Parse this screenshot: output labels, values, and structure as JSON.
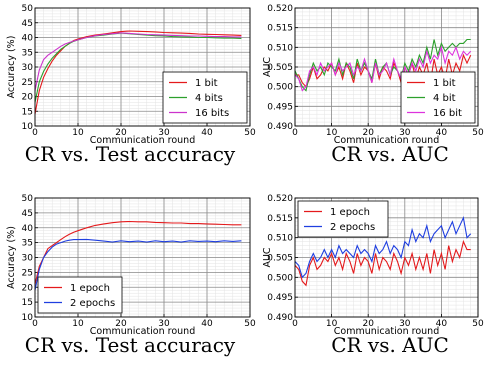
{
  "chart_data": [
    {
      "type": "line",
      "caption": "CR vs. Test accuracy",
      "xlabel": "Communication round",
      "ylabel": "Accuracy (%)",
      "xlim": [
        0,
        50
      ],
      "ylim": [
        10,
        50
      ],
      "xticks": [
        "0",
        "10",
        "20",
        "30",
        "40",
        "50"
      ],
      "yticks": [
        "10",
        "15",
        "20",
        "25",
        "30",
        "35",
        "40",
        "45",
        "50"
      ],
      "grid": true,
      "legend_position": "lower-right",
      "series": [
        {
          "name": "1 bit",
          "color": "#e41a1c",
          "x": [
            0,
            1,
            2,
            3,
            4,
            5,
            6,
            7,
            8,
            9,
            10,
            12,
            14,
            16,
            18,
            20,
            22,
            24,
            26,
            28,
            30,
            32,
            34,
            36,
            38,
            40,
            42,
            44,
            46,
            48
          ],
          "values": [
            14,
            22,
            26.5,
            29.5,
            32,
            34,
            35.5,
            37,
            38,
            39,
            39.5,
            40.3,
            40.8,
            41.2,
            41.6,
            42,
            42.2,
            42.1,
            42,
            41.9,
            41.7,
            41.6,
            41.5,
            41.4,
            41.2,
            41.1,
            41,
            40.9,
            40.8,
            40.7
          ]
        },
        {
          "name": "4 bits",
          "color": "#2ca02c",
          "x": [
            0,
            1,
            2,
            3,
            4,
            5,
            6,
            7,
            8,
            9,
            10,
            12,
            14,
            16,
            18,
            20,
            22,
            24,
            26,
            28,
            30,
            32,
            34,
            36,
            38,
            40,
            42,
            44,
            46,
            48
          ],
          "values": [
            18,
            25,
            28.5,
            31,
            33,
            34.5,
            36,
            37,
            38,
            38.7,
            39.2,
            40,
            40.5,
            40.8,
            41.2,
            41.5,
            41.3,
            41,
            40.8,
            40.6,
            40.5,
            40.3,
            40.2,
            40.1,
            40,
            40,
            39.9,
            39.8,
            39.8,
            39.7
          ]
        },
        {
          "name": "16 bits",
          "color": "#cc33cc",
          "x": [
            0,
            1,
            2,
            3,
            4,
            5,
            6,
            7,
            8,
            9,
            10,
            12,
            14,
            16,
            18,
            20,
            22,
            24,
            26,
            28,
            30,
            32,
            34,
            36,
            38,
            40,
            42,
            44,
            46,
            48
          ],
          "values": [
            22,
            29,
            32.5,
            34,
            35,
            36,
            37,
            37.8,
            38.3,
            38.8,
            39.2,
            40,
            40.6,
            41,
            41.3,
            41.6,
            41.4,
            41.2,
            41,
            40.9,
            40.8,
            40.7,
            40.6,
            40.5,
            40.5,
            40.4,
            40.3,
            40.3,
            40.2,
            40.2
          ]
        }
      ]
    },
    {
      "type": "line",
      "caption": "CR vs. AUC",
      "xlabel": "Communication round",
      "ylabel": "AUC",
      "xlim": [
        0,
        50
      ],
      "ylim": [
        0.49,
        0.52
      ],
      "xticks": [
        "0",
        "10",
        "20",
        "30",
        "40",
        "50"
      ],
      "yticks": [
        "0.490",
        "0.495",
        "0.500",
        "0.505",
        "0.510",
        "0.515",
        "0.520"
      ],
      "grid": true,
      "legend_position": "lower-right",
      "series": [
        {
          "name": "1 bit",
          "color": "#e41a1c",
          "x": [
            0,
            1,
            2,
            3,
            4,
            5,
            6,
            7,
            8,
            9,
            10,
            11,
            12,
            13,
            14,
            15,
            16,
            17,
            18,
            19,
            20,
            21,
            22,
            23,
            24,
            25,
            26,
            27,
            28,
            29,
            30,
            31,
            32,
            33,
            34,
            35,
            36,
            37,
            38,
            39,
            40,
            41,
            42,
            43,
            44,
            45,
            46,
            47,
            48
          ],
          "values": [
            0.503,
            0.503,
            0.501,
            0.5,
            0.502,
            0.505,
            0.502,
            0.503,
            0.505,
            0.504,
            0.506,
            0.503,
            0.505,
            0.502,
            0.506,
            0.504,
            0.501,
            0.506,
            0.503,
            0.505,
            0.504,
            0.501,
            0.506,
            0.502,
            0.505,
            0.504,
            0.502,
            0.506,
            0.504,
            0.501,
            0.505,
            0.503,
            0.506,
            0.502,
            0.505,
            0.503,
            0.506,
            0.501,
            0.507,
            0.503,
            0.505,
            0.502,
            0.507,
            0.503,
            0.506,
            0.504,
            0.508,
            0.506,
            0.508
          ]
        },
        {
          "name": "4 bit",
          "color": "#2ca02c",
          "x": [
            0,
            1,
            2,
            3,
            4,
            5,
            6,
            7,
            8,
            9,
            10,
            11,
            12,
            13,
            14,
            15,
            16,
            17,
            18,
            19,
            20,
            21,
            22,
            23,
            24,
            25,
            26,
            27,
            28,
            29,
            30,
            31,
            32,
            33,
            34,
            35,
            36,
            37,
            38,
            39,
            40,
            41,
            42,
            43,
            44,
            45,
            46,
            47,
            48
          ],
          "values": [
            0.504,
            0.502,
            0.5,
            0.499,
            0.503,
            0.506,
            0.504,
            0.505,
            0.503,
            0.506,
            0.505,
            0.504,
            0.507,
            0.503,
            0.506,
            0.505,
            0.502,
            0.507,
            0.504,
            0.506,
            0.504,
            0.502,
            0.507,
            0.503,
            0.505,
            0.506,
            0.503,
            0.505,
            0.504,
            0.502,
            0.506,
            0.504,
            0.507,
            0.505,
            0.508,
            0.506,
            0.51,
            0.507,
            0.512,
            0.508,
            0.511,
            0.509,
            0.51,
            0.511,
            0.51,
            0.511,
            0.511,
            0.512,
            0.512
          ]
        },
        {
          "name": "16 bit",
          "color": "#dd33dd",
          "x": [
            0,
            1,
            2,
            3,
            4,
            5,
            6,
            7,
            8,
            9,
            10,
            11,
            12,
            13,
            14,
            15,
            16,
            17,
            18,
            19,
            20,
            21,
            22,
            23,
            24,
            25,
            26,
            27,
            28,
            29,
            30,
            31,
            32,
            33,
            34,
            35,
            36,
            37,
            38,
            39,
            40,
            41,
            42,
            43,
            44,
            45,
            46,
            47,
            48
          ],
          "values": [
            0.503,
            0.502,
            0.499,
            0.5,
            0.504,
            0.505,
            0.503,
            0.506,
            0.504,
            0.505,
            0.506,
            0.503,
            0.506,
            0.504,
            0.505,
            0.506,
            0.503,
            0.505,
            0.504,
            0.507,
            0.504,
            0.501,
            0.506,
            0.503,
            0.504,
            0.506,
            0.503,
            0.507,
            0.504,
            0.502,
            0.505,
            0.503,
            0.506,
            0.504,
            0.507,
            0.505,
            0.509,
            0.506,
            0.508,
            0.507,
            0.51,
            0.506,
            0.509,
            0.508,
            0.51,
            0.507,
            0.509,
            0.508,
            0.509
          ]
        }
      ]
    },
    {
      "type": "line",
      "caption": "CR vs. Test accuracy",
      "xlabel": "Communication round",
      "ylabel": "Accuracy (%)",
      "xlim": [
        0,
        50
      ],
      "ylim": [
        10,
        50
      ],
      "xticks": [
        "0",
        "10",
        "20",
        "30",
        "40",
        "50"
      ],
      "yticks": [
        "10",
        "15",
        "20",
        "25",
        "30",
        "35",
        "40",
        "45",
        "50"
      ],
      "grid": true,
      "legend_position": "lower-left",
      "series": [
        {
          "name": "1 epoch",
          "color": "#e41a1c",
          "x": [
            0,
            1,
            2,
            3,
            4,
            5,
            6,
            7,
            8,
            9,
            10,
            12,
            14,
            16,
            18,
            20,
            22,
            24,
            26,
            28,
            30,
            32,
            34,
            36,
            38,
            40,
            42,
            44,
            46,
            48
          ],
          "values": [
            21,
            27,
            30,
            33,
            34,
            35,
            36,
            37,
            37.8,
            38.5,
            39,
            40,
            40.8,
            41.3,
            41.7,
            42,
            42.1,
            42,
            42,
            41.8,
            41.7,
            41.6,
            41.6,
            41.4,
            41.4,
            41.3,
            41.2,
            41.1,
            41,
            41
          ]
        },
        {
          "name": "2 epochs",
          "color": "#1f3fe0",
          "x": [
            0,
            1,
            2,
            3,
            4,
            5,
            6,
            7,
            8,
            9,
            10,
            12,
            14,
            16,
            18,
            20,
            22,
            24,
            26,
            28,
            30,
            32,
            34,
            36,
            38,
            40,
            42,
            44,
            46,
            48
          ],
          "values": [
            19,
            26,
            30,
            32,
            33.5,
            34.5,
            35,
            35.5,
            35.8,
            36,
            36,
            36.1,
            35.8,
            35.5,
            35.2,
            35.6,
            35.3,
            35.5,
            35.2,
            35.6,
            35.3,
            35.5,
            35.2,
            35.6,
            35.4,
            35.5,
            35.3,
            35.6,
            35.4,
            35.6
          ]
        }
      ]
    },
    {
      "type": "line",
      "caption": "CR vs. AUC",
      "xlabel": "Communication round",
      "ylabel": "AUC",
      "xlim": [
        0,
        50
      ],
      "ylim": [
        0.49,
        0.52
      ],
      "xticks": [
        "0",
        "10",
        "20",
        "30",
        "40",
        "50"
      ],
      "yticks": [
        "0.490",
        "0.495",
        "0.500",
        "0.505",
        "0.510",
        "0.515",
        "0.520"
      ],
      "grid": true,
      "legend_position": "upper-left",
      "series": [
        {
          "name": "1 epoch",
          "color": "#e41a1c",
          "x": [
            0,
            1,
            2,
            3,
            4,
            5,
            6,
            7,
            8,
            9,
            10,
            11,
            12,
            13,
            14,
            15,
            16,
            17,
            18,
            19,
            20,
            21,
            22,
            23,
            24,
            25,
            26,
            27,
            28,
            29,
            30,
            31,
            32,
            33,
            34,
            35,
            36,
            37,
            38,
            39,
            40,
            41,
            42,
            43,
            44,
            45,
            46,
            47,
            48
          ],
          "values": [
            0.503,
            0.502,
            0.499,
            0.498,
            0.503,
            0.505,
            0.502,
            0.503,
            0.505,
            0.504,
            0.506,
            0.503,
            0.505,
            0.502,
            0.506,
            0.504,
            0.501,
            0.506,
            0.503,
            0.505,
            0.504,
            0.501,
            0.506,
            0.502,
            0.505,
            0.504,
            0.502,
            0.506,
            0.504,
            0.501,
            0.505,
            0.503,
            0.506,
            0.502,
            0.505,
            0.502,
            0.506,
            0.501,
            0.507,
            0.503,
            0.506,
            0.502,
            0.508,
            0.504,
            0.507,
            0.505,
            0.509,
            0.507,
            0.507
          ]
        },
        {
          "name": "2 epochs",
          "color": "#1f3fe0",
          "x": [
            0,
            1,
            2,
            3,
            4,
            5,
            6,
            7,
            8,
            9,
            10,
            11,
            12,
            13,
            14,
            15,
            16,
            17,
            18,
            19,
            20,
            21,
            22,
            23,
            24,
            25,
            26,
            27,
            28,
            29,
            30,
            31,
            32,
            33,
            34,
            35,
            36,
            37,
            38,
            39,
            40,
            41,
            42,
            43,
            44,
            45,
            46,
            47,
            48
          ],
          "values": [
            0.504,
            0.503,
            0.5,
            0.501,
            0.504,
            0.506,
            0.504,
            0.505,
            0.507,
            0.505,
            0.507,
            0.505,
            0.508,
            0.506,
            0.507,
            0.506,
            0.505,
            0.508,
            0.506,
            0.507,
            0.506,
            0.504,
            0.508,
            0.506,
            0.507,
            0.509,
            0.506,
            0.508,
            0.507,
            0.505,
            0.509,
            0.508,
            0.512,
            0.509,
            0.511,
            0.51,
            0.513,
            0.509,
            0.511,
            0.512,
            0.513,
            0.51,
            0.512,
            0.514,
            0.511,
            0.513,
            0.515,
            0.51,
            0.511
          ]
        }
      ]
    }
  ]
}
